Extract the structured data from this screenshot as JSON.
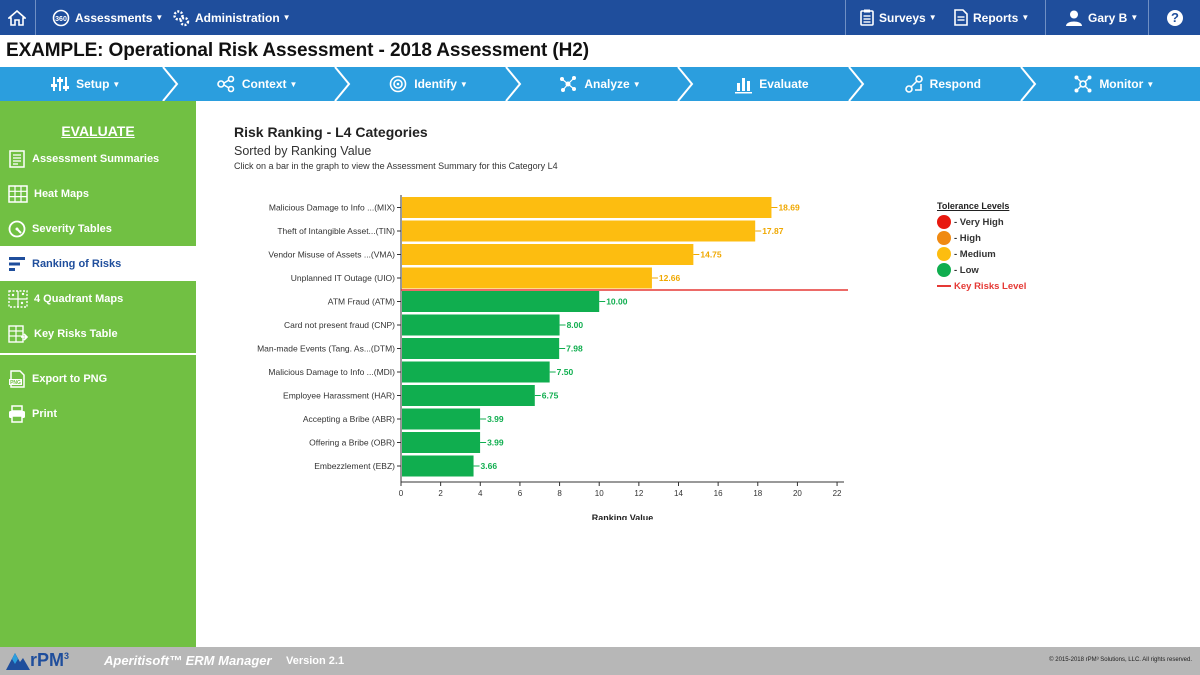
{
  "topbar": {
    "home_label": "",
    "assessments_label": "Assessments",
    "administration_label": "Administration",
    "surveys_label": "Surveys",
    "reports_label": "Reports",
    "user_label": "Gary B",
    "help_label": "?"
  },
  "page": {
    "title": "EXAMPLE: Operational Risk Assessment - 2018 Assessment (H2)"
  },
  "workflow": {
    "steps": [
      {
        "label": "Setup",
        "has_caret": true
      },
      {
        "label": "Context",
        "has_caret": true
      },
      {
        "label": "Identify",
        "has_caret": true
      },
      {
        "label": "Analyze",
        "has_caret": true
      },
      {
        "label": "Evaluate",
        "has_caret": false
      },
      {
        "label": "Respond",
        "has_caret": false
      },
      {
        "label": "Monitor",
        "has_caret": true
      }
    ]
  },
  "sidebar": {
    "heading": "EVALUATE",
    "items": [
      {
        "label": "Assessment Summaries"
      },
      {
        "label": "Heat Maps"
      },
      {
        "label": "Severity Tables"
      },
      {
        "label": "Ranking of Risks"
      },
      {
        "label": "4 Quadrant Maps"
      },
      {
        "label": "Key Risks Table"
      }
    ],
    "actions": [
      {
        "label": "Export to PNG"
      },
      {
        "label": "Print"
      }
    ]
  },
  "chart_header": {
    "title": "Risk Ranking - L4 Categories",
    "subtitle": "Sorted by Ranking Value",
    "instruction": "Click on a bar in the graph to view the Assessment Summary for this Category L4"
  },
  "chart_data": {
    "type": "bar",
    "orientation": "horizontal",
    "title": "Risk Ranking - L4 Categories",
    "subtitle": "Sorted by Ranking Value",
    "xlabel": "Ranking Value",
    "ylabel": "",
    "xlim": [
      0,
      22
    ],
    "xticks": [
      0,
      2,
      4,
      6,
      8,
      10,
      12,
      14,
      16,
      18,
      20,
      22
    ],
    "key_risk_threshold_after_index": 3,
    "categories": [
      "Malicious Damage to Info ...(MIX)",
      "Theft of Intangible Asset...(TIN)",
      "Vendor Misuse of Assets ...(VMA)",
      "Unplanned IT Outage (UIO)",
      "ATM Fraud (ATM)",
      "Card not present fraud (CNP)",
      "Man-made Events (Tang. As...(DTM)",
      "Malicious Damage to Info ...(MDI)",
      "Employee Harassment (HAR)",
      "Accepting a Bribe (ABR)",
      "Offering a Bribe (OBR)",
      "Embezzlement (EBZ)"
    ],
    "values": [
      18.69,
      17.87,
      14.75,
      12.66,
      10.0,
      8.0,
      7.98,
      7.5,
      6.75,
      3.99,
      3.99,
      3.66
    ],
    "value_labels": [
      "18.69",
      "17.87",
      "14.75",
      "12.66",
      "10.00",
      "8.00",
      "7.98",
      "7.50",
      "6.75",
      "3.99",
      "3.99",
      "3.66"
    ],
    "tolerance": [
      "Medium",
      "Medium",
      "Medium",
      "Medium",
      "Low",
      "Low",
      "Low",
      "Low",
      "Low",
      "Low",
      "Low",
      "Low"
    ],
    "legend_placement": "right"
  },
  "legend": {
    "title": "Tolerance Levels",
    "items": [
      {
        "label": "- Very High",
        "color": "#e8190f"
      },
      {
        "label": "- High",
        "color": "#f08a12"
      },
      {
        "label": "- Medium",
        "color": "#fdbd10"
      },
      {
        "label": "- Low",
        "color": "#10ae4f"
      }
    ],
    "key_risks_label": "Key Risks Level",
    "key_risks_color": "#e53935"
  },
  "colors": {
    "topbar": "#1f4e9c",
    "workflow": "#2b9ede",
    "sidebar": "#71c043",
    "medium": "#fdbd10",
    "low": "#10ae4f",
    "medium_label": "#f0a800",
    "low_label": "#10ae4f"
  },
  "footer": {
    "logo_text": "rPM",
    "logo_sup": "3",
    "brand": "Aperitisoft™ ERM Manager",
    "version": "Version 2.1",
    "copyright": "© 2015-2018 rPM³ Solutions, LLC. All rights reserved."
  }
}
